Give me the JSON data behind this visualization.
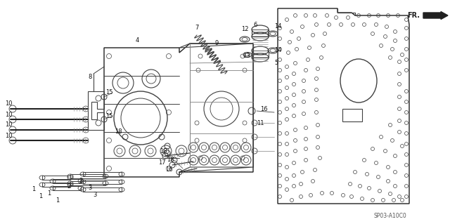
{
  "figsize": [
    6.4,
    3.19
  ],
  "dpi": 100,
  "bg": "#ffffff",
  "diagram_code": "SP03-A10C0",
  "fr_label": "FR.",
  "gray": "#404040",
  "lgray": "#808080",
  "dgray": "#202020"
}
